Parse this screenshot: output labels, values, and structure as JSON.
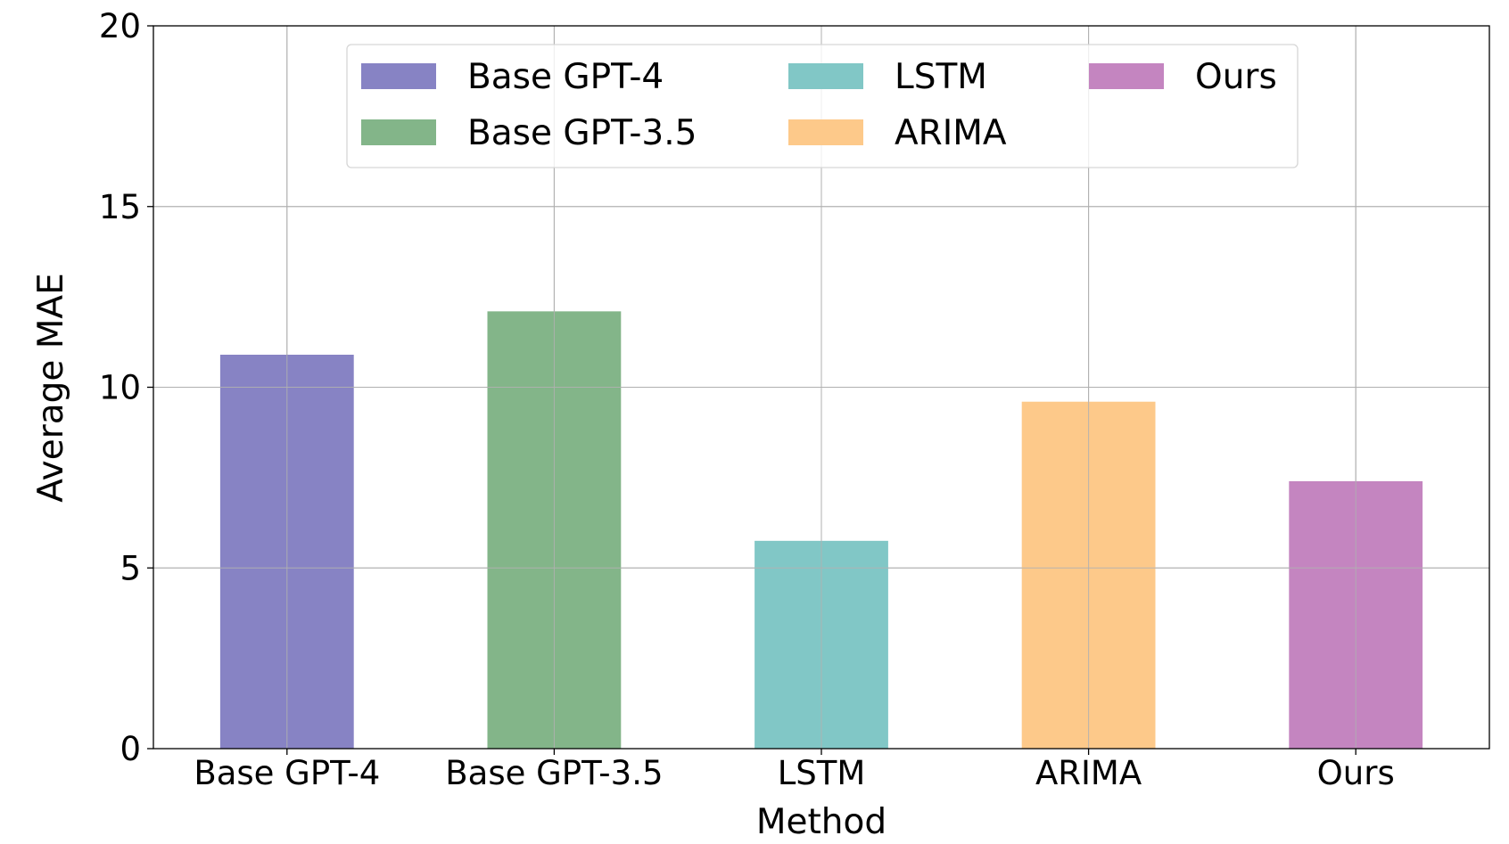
{
  "chart_data": {
    "type": "bar",
    "title": "",
    "xlabel": "Method",
    "ylabel": "Average MAE",
    "categories": [
      "Base GPT-4",
      "Base GPT-3.5",
      "LSTM",
      "ARIMA",
      "Ours"
    ],
    "values": [
      10.9,
      12.1,
      5.75,
      9.6,
      7.4
    ],
    "colors": [
      "#8783c4",
      "#83b589",
      "#81c7c6",
      "#fdc98a",
      "#c485c0"
    ],
    "ylim": [
      0,
      20
    ],
    "yticks": [
      0,
      5,
      10,
      15,
      20
    ],
    "ytick_labels": [
      "0",
      "5",
      "10",
      "15",
      "20"
    ],
    "grid": true,
    "legend": {
      "placement": "top-center",
      "columns": 3,
      "entries": [
        "Base GPT-4",
        "Base GPT-3.5",
        "LSTM",
        "ARIMA",
        "Ours"
      ]
    }
  }
}
